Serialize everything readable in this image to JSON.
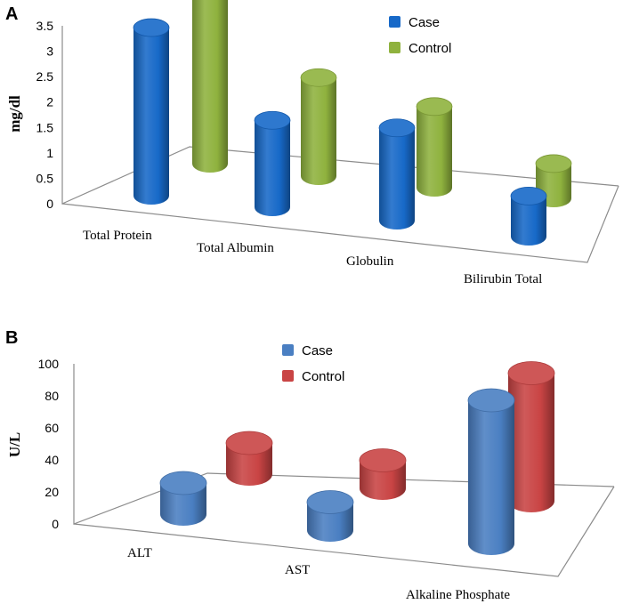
{
  "chart_data": [
    {
      "panel": "A",
      "type": "bar",
      "ylabel": "mg/dl",
      "xlabel": "",
      "ylim": [
        0,
        3.5
      ],
      "yticks": [
        "0",
        "0.5",
        "1",
        "1.5",
        "2",
        "2.5",
        "3",
        "3.5"
      ],
      "categories": [
        "Total Protein",
        "Total Albumin",
        "Globulin",
        "Bilirubin Total"
      ],
      "series": [
        {
          "name": "Case",
          "color": "#1769c8",
          "values": [
            2.9,
            1.5,
            1.6,
            0.7
          ]
        },
        {
          "name": "Control",
          "color": "#8fb23e",
          "values": [
            3.0,
            1.7,
            1.4,
            0.6
          ]
        }
      ],
      "legend_position": "top-right",
      "grid": false
    },
    {
      "panel": "B",
      "type": "bar",
      "ylabel": "U/L",
      "xlabel": "",
      "ylim": [
        0,
        100
      ],
      "yticks": [
        "0",
        "20",
        "40",
        "60",
        "80",
        "100"
      ],
      "categories": [
        "ALT",
        "AST",
        "Alkaline Phosphate"
      ],
      "series": [
        {
          "name": "Case",
          "color": "#4a7fc2",
          "values": [
            20,
            18,
            92
          ]
        },
        {
          "name": "Control",
          "color": "#c94444",
          "values": [
            20,
            18,
            82
          ]
        }
      ],
      "legend_position": "top-center",
      "grid": false
    }
  ]
}
